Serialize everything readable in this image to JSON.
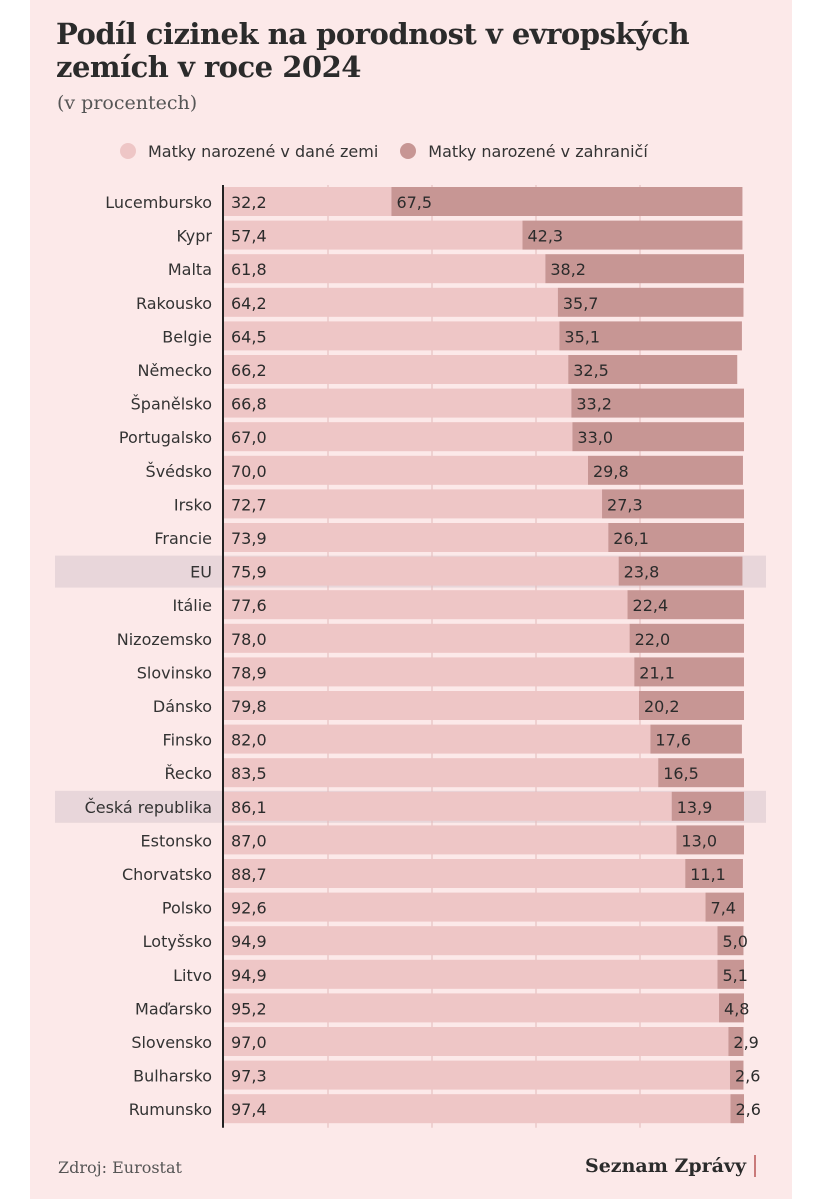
{
  "header": {
    "title": "Podíl cizinek na porodnost v evropských zemích v roce 2024",
    "subtitle": "(v procentech)"
  },
  "legend": {
    "items": [
      {
        "label": "Matky narozené v dané zemi",
        "color": "#eec6c6"
      },
      {
        "label": "Matky narozené v zahraničí",
        "color": "#c79694"
      }
    ]
  },
  "footer": {
    "source": "Zdroj: Eurostat",
    "brand": "Seznam Zprávy"
  },
  "colors": {
    "background": "#fce9e9",
    "domestic": "#eec6c6",
    "foreign": "#c79694",
    "highlight": "#e8d6da"
  },
  "chart_data": {
    "type": "bar",
    "orientation": "horizontal",
    "stacked": true,
    "xlim": [
      0,
      100
    ],
    "grid": true,
    "legend_position": "top",
    "highlighted": [
      "EU",
      "Česká republika"
    ],
    "categories": [
      "Lucembursko",
      "Kypr",
      "Malta",
      "Rakousko",
      "Belgie",
      "Německo",
      "Španělsko",
      "Portugalsko",
      "Švédsko",
      "Irsko",
      "Francie",
      "EU",
      "Itálie",
      "Nizozemsko",
      "Slovinsko",
      "Dánsko",
      "Finsko",
      "Řecko",
      "Česká republika",
      "Estonsko",
      "Chorvatsko",
      "Polsko",
      "Lotyšsko",
      "Litvo",
      "Maďarsko",
      "Slovensko",
      "Bulharsko",
      "Rumunsko"
    ],
    "series": [
      {
        "name": "Matky narozené v dané zemi",
        "values": [
          32.2,
          57.4,
          61.8,
          64.2,
          64.5,
          66.2,
          66.8,
          67.0,
          70.0,
          72.7,
          73.9,
          75.9,
          77.6,
          78.0,
          78.9,
          79.8,
          82.0,
          83.5,
          86.1,
          87.0,
          88.7,
          92.6,
          94.9,
          94.9,
          95.2,
          97.0,
          97.3,
          97.4
        ],
        "labels": [
          "32,2",
          "57,4",
          "61,8",
          "64,2",
          "64,5",
          "66,2",
          "66,8",
          "67,0",
          "70,0",
          "72,7",
          "73,9",
          "75,9",
          "77,6",
          "78,0",
          "78,9",
          "79,8",
          "82,0",
          "83,5",
          "86,1",
          "87,0",
          "88,7",
          "92,6",
          "94,9",
          "94,9",
          "95,2",
          "97,0",
          "97,3",
          "97,4"
        ]
      },
      {
        "name": "Matky narozené v zahraničí",
        "values": [
          67.5,
          42.3,
          38.2,
          35.7,
          35.1,
          32.5,
          33.2,
          33.0,
          29.8,
          27.3,
          26.1,
          23.8,
          22.4,
          22.0,
          21.1,
          20.2,
          17.6,
          16.5,
          13.9,
          13.0,
          11.1,
          7.4,
          5.0,
          5.1,
          4.8,
          2.9,
          2.6,
          2.6
        ],
        "labels": [
          "67,5",
          "42,3",
          "38,2",
          "35,7",
          "35,1",
          "32,5",
          "33,2",
          "33,0",
          "29,8",
          "27,3",
          "26,1",
          "23,8",
          "22,4",
          "22,0",
          "21,1",
          "20,2",
          "17,6",
          "16,5",
          "13,9",
          "13,0",
          "11,1",
          "7,4",
          "5,0",
          "5,1",
          "4,8",
          "2,9",
          "2,6",
          "2,6"
        ]
      }
    ]
  }
}
